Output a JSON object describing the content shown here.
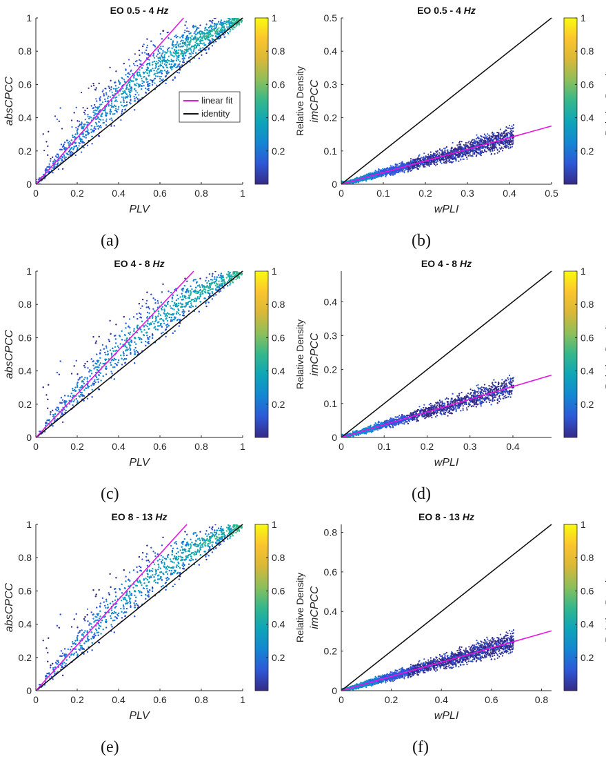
{
  "colorbar_label": "Relative Density",
  "colorbar_ticks": [
    "0.2",
    "0.4",
    "0.6",
    "0.8",
    "1"
  ],
  "colors": {
    "fit": "#e615e0",
    "identity": "#111111",
    "parula": [
      "#352a87",
      "#2e58d8",
      "#1387d3",
      "#0ea5b8",
      "#33b88c",
      "#8dbf5a",
      "#d9b837",
      "#fcc42e",
      "#f9fb0e"
    ]
  },
  "legend": {
    "fit": "linear fit",
    "identity": "identity"
  },
  "chart_data": [
    {
      "panel": "a",
      "caption": "(a)",
      "type": "scatter",
      "title": "EO 0.5 - 4",
      "title_unit": "Hz",
      "xlabel": "PLV",
      "ylabel": "absCPCC",
      "xlim": [
        0,
        1
      ],
      "ylim": [
        0,
        1
      ],
      "xticks": [
        "0",
        "0.2",
        "0.4",
        "0.6",
        "0.8",
        "1"
      ],
      "yticks": [
        "0",
        "0.2",
        "0.4",
        "0.6",
        "0.8",
        "1"
      ],
      "fit_slope": 1.4,
      "show_legend": true
    },
    {
      "panel": "b",
      "caption": "(b)",
      "type": "scatter",
      "title": "EO 0.5 - 4",
      "title_unit": "Hz",
      "xlabel": "wPLI",
      "ylabel": "imCPCC",
      "xlim": [
        0,
        0.5
      ],
      "ylim": [
        0,
        0.5
      ],
      "xticks": [
        "0",
        "0.1",
        "0.2",
        "0.3",
        "0.4",
        "0.5"
      ],
      "yticks": [
        "0",
        "0.1",
        "0.2",
        "0.3",
        "0.4",
        "0.5"
      ],
      "fit_slope": 0.35,
      "show_legend": false
    },
    {
      "panel": "c",
      "caption": "(c)",
      "type": "scatter",
      "title": "EO 4 - 8",
      "title_unit": "Hz",
      "xlabel": "PLV",
      "ylabel": "absCPCC",
      "xlim": [
        0,
        1
      ],
      "ylim": [
        0,
        1
      ],
      "xticks": [
        "0",
        "0.2",
        "0.4",
        "0.6",
        "0.8",
        "1"
      ],
      "yticks": [
        "0",
        "0.2",
        "0.4",
        "0.6",
        "0.8",
        "1"
      ],
      "fit_slope": 1.31,
      "show_legend": false
    },
    {
      "panel": "d",
      "caption": "(d)",
      "type": "scatter",
      "title": "EO 4 - 8",
      "title_unit": "Hz",
      "xlabel": "wPLI",
      "ylabel": "imCPCC",
      "xlim": [
        0,
        0.49
      ],
      "ylim": [
        0,
        0.49
      ],
      "xticks": [
        "0",
        "0.1",
        "0.2",
        "0.3",
        "0.4"
      ],
      "yticks": [
        "0",
        "0.1",
        "0.2",
        "0.3",
        "0.4"
      ],
      "fit_slope": 0.375,
      "show_legend": false
    },
    {
      "panel": "e",
      "caption": "(e)",
      "type": "scatter",
      "title": "EO 8 - 13",
      "title_unit": "Hz",
      "xlabel": "PLV",
      "ylabel": "absCPCC",
      "xlim": [
        0,
        1
      ],
      "ylim": [
        0,
        1
      ],
      "xticks": [
        "0",
        "0.2",
        "0.4",
        "0.6",
        "0.8",
        "1"
      ],
      "yticks": [
        "0",
        "0.2",
        "0.4",
        "0.6",
        "0.8",
        "1"
      ],
      "fit_slope": 1.37,
      "show_legend": false
    },
    {
      "panel": "f",
      "caption": "(f)",
      "type": "scatter",
      "title": "EO 8 - 13",
      "title_unit": "Hz",
      "xlabel": "wPLI",
      "ylabel": "imCPCC",
      "xlim": [
        0,
        0.84
      ],
      "ylim": [
        0,
        0.84
      ],
      "xticks": [
        "0",
        "0.2",
        "0.4",
        "0.6",
        "0.8"
      ],
      "yticks": [
        "0",
        "0.2",
        "0.4",
        "0.6",
        "0.8"
      ],
      "fit_slope": 0.36,
      "show_legend": false
    }
  ]
}
